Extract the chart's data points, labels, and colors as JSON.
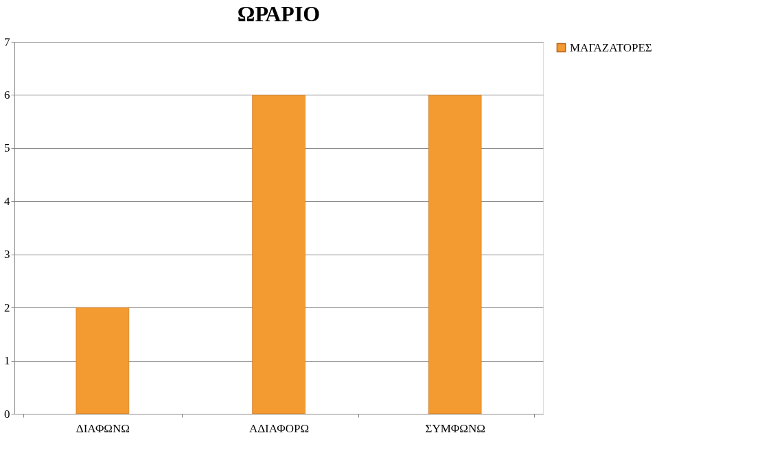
{
  "chart_data": {
    "type": "bar",
    "title": "ΩΡΑΡΙΟ",
    "categories": [
      "ΔΙΑΦΩΝΩ",
      "ΑΔΙΑΦΟΡΩ",
      "ΣΥΜΦΩΝΩ"
    ],
    "series": [
      {
        "name": "ΜΑΓΑΖΑΤΟΡΕΣ",
        "color": "#f39a30",
        "values": [
          2,
          6,
          6
        ]
      }
    ],
    "ylim": [
      0,
      7
    ],
    "yticks": [
      0,
      1,
      2,
      3,
      4,
      5,
      6,
      7
    ],
    "grid": "y",
    "legend": "right"
  }
}
